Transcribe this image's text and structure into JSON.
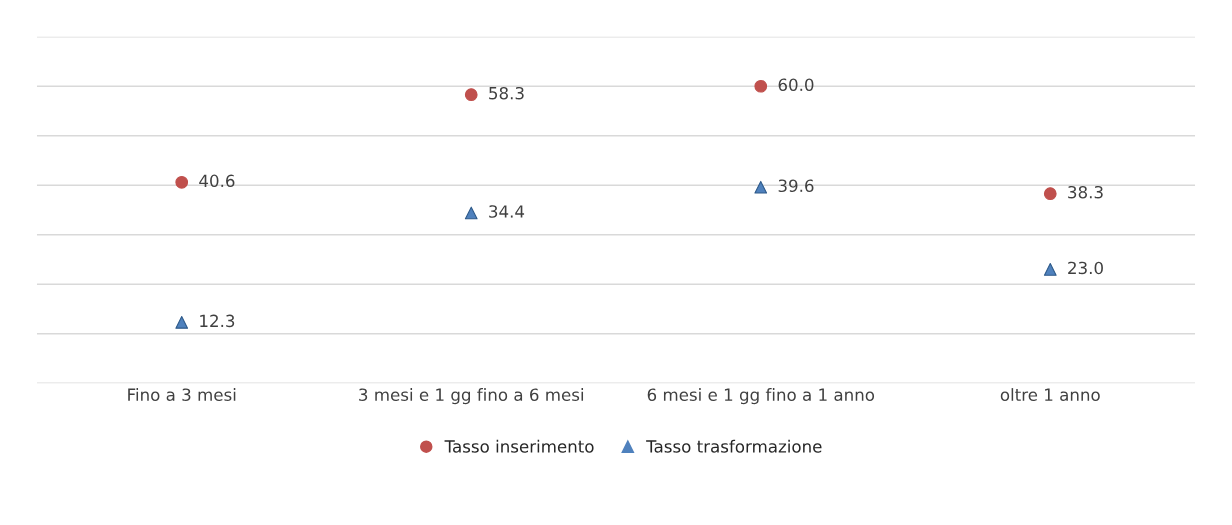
{
  "chart_data": {
    "type": "scatter",
    "categories": [
      "Fino a 3 mesi",
      "3 mesi e 1 gg fino a 6 mesi",
      "6 mesi e 1 gg fino a 1 anno",
      "oltre 1 anno"
    ],
    "series": [
      {
        "name": "Tasso inserimento",
        "color": "#c0504d",
        "marker": "circle",
        "values": [
          40.6,
          58.3,
          60.0,
          38.3
        ],
        "value_labels": [
          "40.6",
          "58.3",
          "60.0",
          "38.3"
        ]
      },
      {
        "name": "Tasso trasformazione",
        "color": "#4f81bd",
        "marker": "triangle",
        "values": [
          12.3,
          34.4,
          39.6,
          23.0
        ],
        "value_labels": [
          "12.3",
          "34.4",
          "39.6",
          "23.0"
        ]
      }
    ],
    "ylim": [
      0,
      70
    ],
    "yticks": [
      {
        "value": 0,
        "label": null
      },
      {
        "value": 10,
        "label": null
      },
      {
        "value": 20,
        "label": null
      },
      {
        "value": 30,
        "label": null
      },
      {
        "value": 40,
        "label": null
      },
      {
        "value": 50,
        "label": null
      },
      {
        "value": 60,
        "label": null
      },
      {
        "value": 70,
        "label": null
      }
    ],
    "tick_labels": "x",
    "grid": "y",
    "legend": "bottom"
  }
}
